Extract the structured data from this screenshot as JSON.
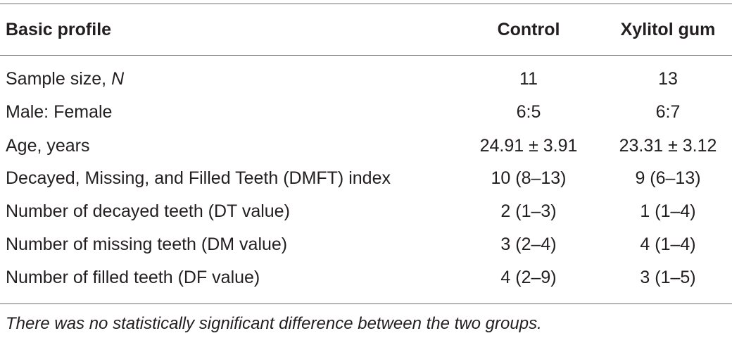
{
  "table": {
    "headers": {
      "profile": "Basic profile",
      "control": "Control",
      "xylitol": "Xylitol gum"
    },
    "rows": [
      {
        "label": "Sample size, ",
        "label_italic": "N",
        "control": "11",
        "xylitol": "13"
      },
      {
        "label": "Male: Female",
        "label_italic": "",
        "control": "6:5",
        "xylitol": "6:7"
      },
      {
        "label": "Age, years",
        "label_italic": "",
        "control": "24.91 ± 3.91",
        "xylitol": "23.31 ± 3.12"
      },
      {
        "label": "Decayed, Missing, and Filled Teeth (DMFT) index",
        "label_italic": "",
        "control": "10 (8–13)",
        "xylitol": "9 (6–13)"
      },
      {
        "label": "Number of decayed teeth (DT value)",
        "label_italic": "",
        "control": "2 (1–3)",
        "xylitol": "1 (1–4)"
      },
      {
        "label": "Number of missing teeth (DM value)",
        "label_italic": "",
        "control": "3 (2–4)",
        "xylitol": "4 (1–4)"
      },
      {
        "label": "Number of filled teeth (DF value)",
        "label_italic": "",
        "control": "4 (2–9)",
        "xylitol": "3 (1–5)"
      }
    ],
    "footnote": "There was no statistically significant difference between the two groups."
  }
}
